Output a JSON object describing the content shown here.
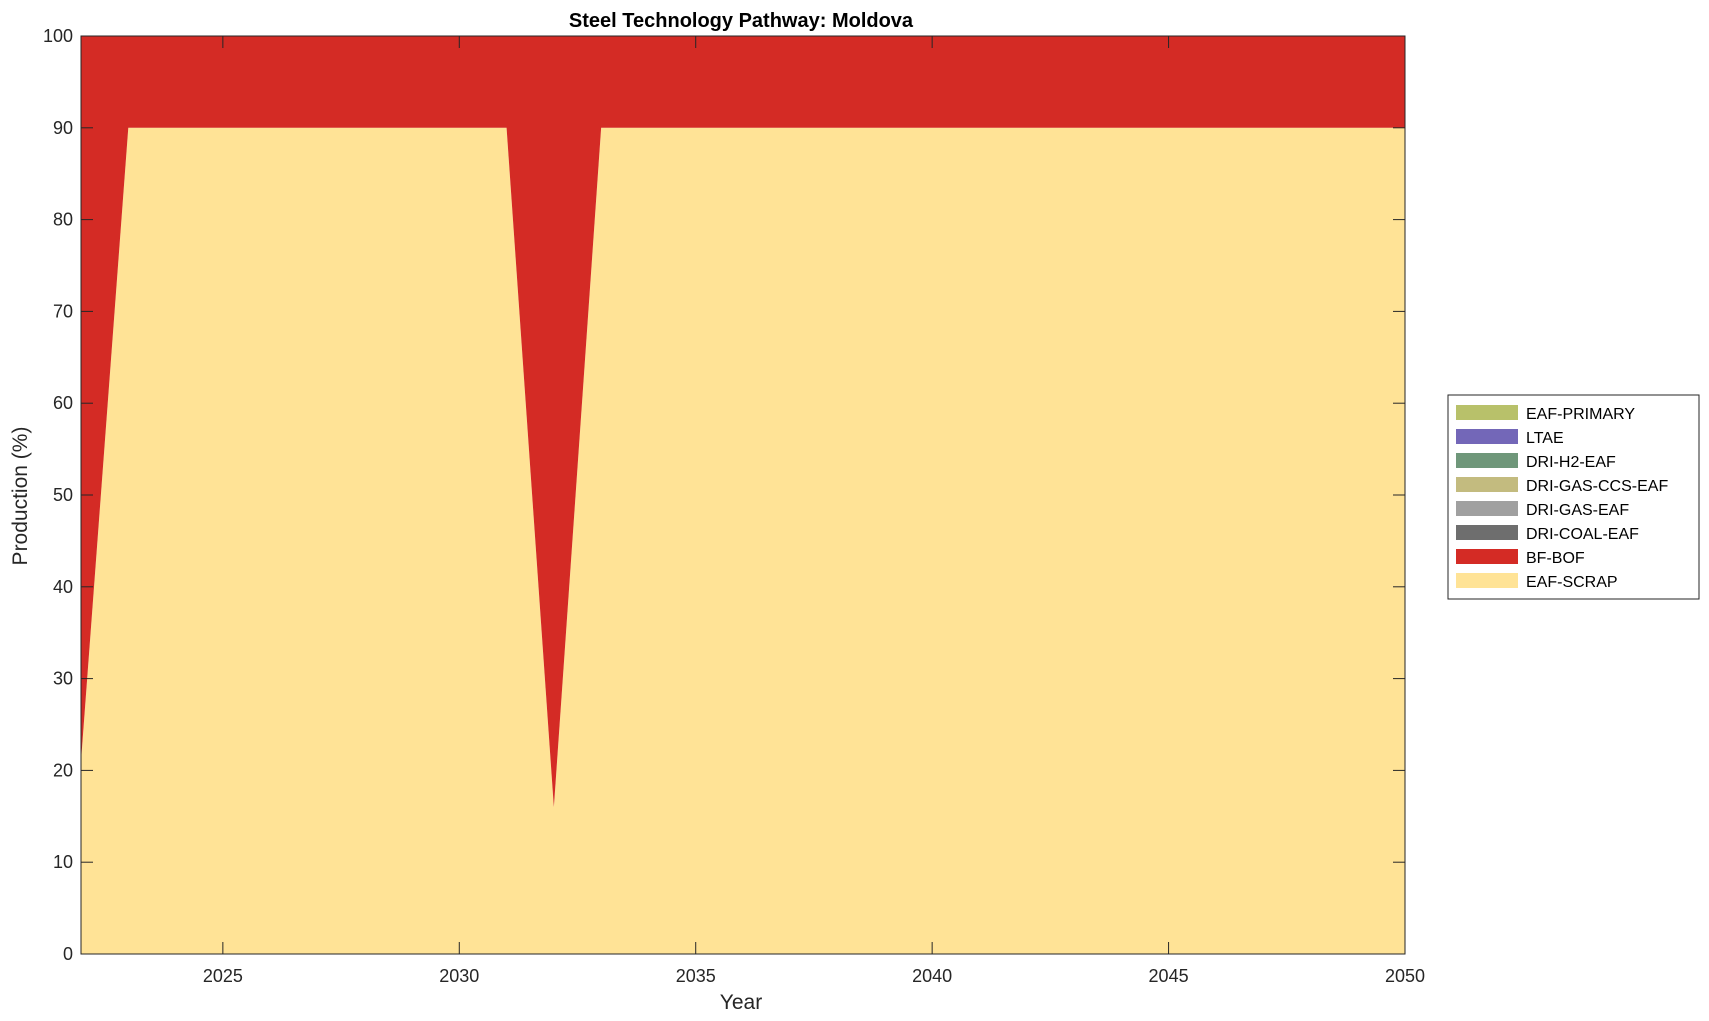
{
  "chart_data": {
    "type": "area",
    "stacked": true,
    "title": "Steel Technology Pathway: Moldova",
    "xlabel": "Year",
    "ylabel": "Production (%)",
    "xlim": [
      2022,
      2050
    ],
    "ylim": [
      0,
      100
    ],
    "xticks": [
      2025,
      2030,
      2035,
      2040,
      2045,
      2050
    ],
    "yticks": [
      0,
      10,
      20,
      30,
      40,
      50,
      60,
      70,
      80,
      90,
      100
    ],
    "grid": false,
    "legend_position": "right",
    "x": [
      2022,
      2023,
      2024,
      2025,
      2026,
      2027,
      2028,
      2029,
      2030,
      2031,
      2032,
      2033,
      2034,
      2035,
      2036,
      2037,
      2038,
      2039,
      2040,
      2041,
      2042,
      2043,
      2044,
      2045,
      2046,
      2047,
      2048,
      2049,
      2050
    ],
    "series": [
      {
        "name": "EAF-SCRAP",
        "color": "#FFE396",
        "values": [
          21,
          90,
          90,
          90,
          90,
          90,
          90,
          90,
          90,
          90,
          16,
          90,
          90,
          90,
          90,
          90,
          90,
          90,
          90,
          90,
          90,
          90,
          90,
          90,
          90,
          90,
          90,
          90,
          90
        ]
      },
      {
        "name": "BF-BOF",
        "color": "#D42B25",
        "values": [
          79,
          10,
          10,
          10,
          10,
          10,
          10,
          10,
          10,
          10,
          84,
          10,
          10,
          10,
          10,
          10,
          10,
          10,
          10,
          10,
          10,
          10,
          10,
          10,
          10,
          10,
          10,
          10,
          10
        ]
      },
      {
        "name": "DRI-COAL-EAF",
        "color": "#6E6E6E",
        "values": [
          0,
          0,
          0,
          0,
          0,
          0,
          0,
          0,
          0,
          0,
          0,
          0,
          0,
          0,
          0,
          0,
          0,
          0,
          0,
          0,
          0,
          0,
          0,
          0,
          0,
          0,
          0,
          0,
          0
        ]
      },
      {
        "name": "DRI-GAS-EAF",
        "color": "#A0A0A0",
        "values": [
          0,
          0,
          0,
          0,
          0,
          0,
          0,
          0,
          0,
          0,
          0,
          0,
          0,
          0,
          0,
          0,
          0,
          0,
          0,
          0,
          0,
          0,
          0,
          0,
          0,
          0,
          0,
          0,
          0
        ]
      },
      {
        "name": "DRI-GAS-CCS-EAF",
        "color": "#C3BB7F",
        "values": [
          0,
          0,
          0,
          0,
          0,
          0,
          0,
          0,
          0,
          0,
          0,
          0,
          0,
          0,
          0,
          0,
          0,
          0,
          0,
          0,
          0,
          0,
          0,
          0,
          0,
          0,
          0,
          0,
          0
        ]
      },
      {
        "name": "DRI-H2-EAF",
        "color": "#6F977A",
        "values": [
          0,
          0,
          0,
          0,
          0,
          0,
          0,
          0,
          0,
          0,
          0,
          0,
          0,
          0,
          0,
          0,
          0,
          0,
          0,
          0,
          0,
          0,
          0,
          0,
          0,
          0,
          0,
          0,
          0
        ]
      },
      {
        "name": "LTAE",
        "color": "#7367B8",
        "values": [
          0,
          0,
          0,
          0,
          0,
          0,
          0,
          0,
          0,
          0,
          0,
          0,
          0,
          0,
          0,
          0,
          0,
          0,
          0,
          0,
          0,
          0,
          0,
          0,
          0,
          0,
          0,
          0,
          0
        ]
      },
      {
        "name": "EAF-PRIMARY",
        "color": "#B8C16A",
        "values": [
          0,
          0,
          0,
          0,
          0,
          0,
          0,
          0,
          0,
          0,
          0,
          0,
          0,
          0,
          0,
          0,
          0,
          0,
          0,
          0,
          0,
          0,
          0,
          0,
          0,
          0,
          0,
          0,
          0
        ]
      }
    ],
    "legend_order": [
      "EAF-PRIMARY",
      "LTAE",
      "DRI-H2-EAF",
      "DRI-GAS-CCS-EAF",
      "DRI-GAS-EAF",
      "DRI-COAL-EAF",
      "BF-BOF",
      "EAF-SCRAP"
    ]
  }
}
